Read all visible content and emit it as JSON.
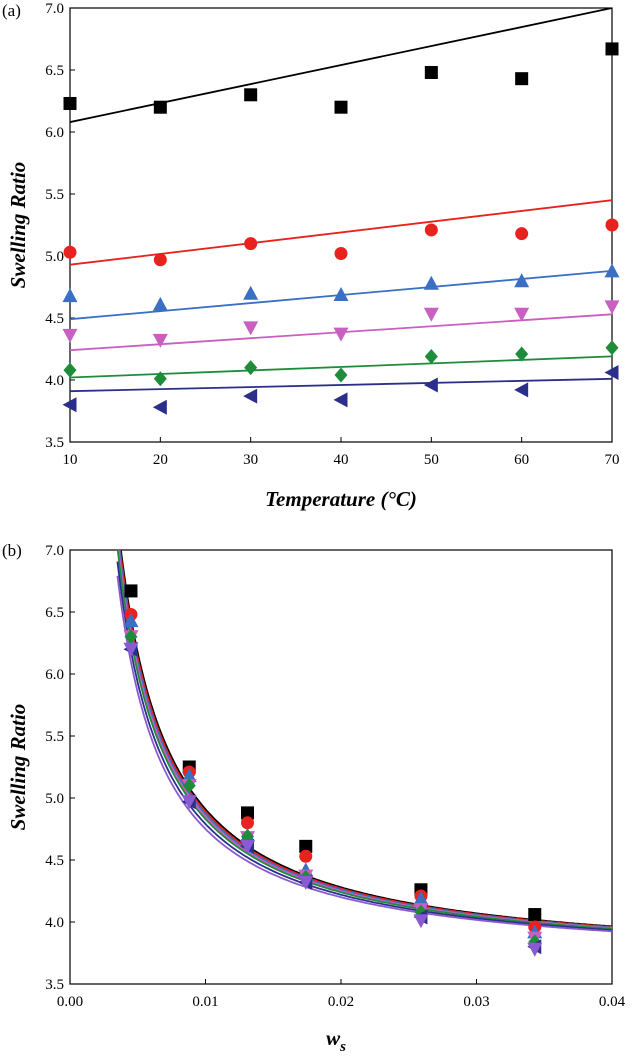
{
  "chart_data": [
    {
      "type": "scatter",
      "panel_label": "(a)",
      "xlabel": "Temperature (°C)",
      "ylabel": "Swelling Ratio",
      "xlim": [
        10,
        70
      ],
      "ylim": [
        3.5,
        7.0
      ],
      "xticks": [
        "10",
        "20",
        "30",
        "40",
        "50",
        "60",
        "70"
      ],
      "yticks": [
        "3.5",
        "4.0",
        "4.5",
        "5.0",
        "5.5",
        "6.0",
        "6.5",
        "7.0"
      ],
      "grid": false,
      "x": [
        10,
        20,
        30,
        40,
        50,
        60,
        70
      ],
      "series": [
        {
          "marker": "square",
          "color": "#000000",
          "values": [
            6.23,
            6.2,
            6.3,
            6.2,
            6.48,
            6.43,
            6.67
          ],
          "fit": [
            [
              10,
              6.08
            ],
            [
              70,
              7.0
            ]
          ]
        },
        {
          "marker": "circle",
          "color": "#e8221f",
          "values": [
            5.03,
            4.97,
            5.1,
            5.02,
            5.21,
            5.18,
            5.25
          ],
          "fit": [
            [
              10,
              4.93
            ],
            [
              70,
              5.45
            ]
          ]
        },
        {
          "marker": "triangle-up",
          "color": "#3a6fc4",
          "values": [
            4.68,
            4.61,
            4.7,
            4.69,
            4.78,
            4.8,
            4.88
          ],
          "fit": [
            [
              10,
              4.49
            ],
            [
              70,
              4.88
            ]
          ]
        },
        {
          "marker": "triangle-down",
          "color": "#c85fc1",
          "values": [
            4.36,
            4.32,
            4.42,
            4.37,
            4.53,
            4.53,
            4.59
          ],
          "fit": [
            [
              10,
              4.24
            ],
            [
              70,
              4.53
            ]
          ]
        },
        {
          "marker": "diamond",
          "color": "#1e8c3a",
          "values": [
            4.08,
            4.01,
            4.1,
            4.04,
            4.19,
            4.21,
            4.26
          ],
          "fit": [
            [
              10,
              4.02
            ],
            [
              70,
              4.19
            ]
          ]
        },
        {
          "marker": "triangle-left",
          "color": "#2c2f8a",
          "values": [
            3.8,
            3.78,
            3.87,
            3.84,
            3.96,
            3.92,
            4.06
          ],
          "fit": [
            [
              10,
              3.91
            ],
            [
              70,
              4.01
            ]
          ]
        }
      ]
    },
    {
      "type": "scatter",
      "panel_label": "(b)",
      "xlabel": "w",
      "xlabel_sub": "s",
      "ylabel": "Swelling Ratio",
      "xlim": [
        0.0,
        0.04
      ],
      "ylim": [
        3.5,
        7.0
      ],
      "xticks": [
        "0.00",
        "0.01",
        "0.02",
        "0.03",
        "0.04"
      ],
      "yticks": [
        "3.5",
        "4.0",
        "4.5",
        "5.0",
        "5.5",
        "6.0",
        "6.5",
        "7.0"
      ],
      "grid": false,
      "x": [
        0.0045,
        0.0088,
        0.0131,
        0.0174,
        0.0259,
        0.0343
      ],
      "series": [
        {
          "marker": "square",
          "color": "#000000",
          "values": [
            6.67,
            5.25,
            4.88,
            4.61,
            4.26,
            4.06
          ],
          "fit_k": 0.0126
        },
        {
          "marker": "circle",
          "color": "#e8221f",
          "values": [
            6.48,
            5.21,
            4.8,
            4.53,
            4.21,
            3.96
          ],
          "fit_k": 0.0124
        },
        {
          "marker": "triangle-up",
          "color": "#3a6fc4",
          "values": [
            6.43,
            5.18,
            4.7,
            4.42,
            4.19,
            3.92
          ],
          "fit_k": 0.0122
        },
        {
          "marker": "triangle-down",
          "color": "#c85fc1",
          "values": [
            6.3,
            5.1,
            4.68,
            4.37,
            4.1,
            3.87
          ],
          "fit_k": 0.012
        },
        {
          "marker": "diamond",
          "color": "#1e8c3a",
          "values": [
            6.3,
            5.1,
            4.69,
            4.36,
            4.08,
            3.84
          ],
          "fit_k": 0.0118
        },
        {
          "marker": "triangle-left",
          "color": "#2c2f8a",
          "values": [
            6.2,
            4.97,
            4.61,
            4.32,
            4.04,
            3.8
          ],
          "fit_k": 0.0114
        },
        {
          "marker": "triangle-down",
          "color": "#8a5bd0",
          "values": [
            6.2,
            4.97,
            4.61,
            4.32,
            4.01,
            3.78
          ],
          "fit_k": 0.011
        }
      ]
    }
  ]
}
